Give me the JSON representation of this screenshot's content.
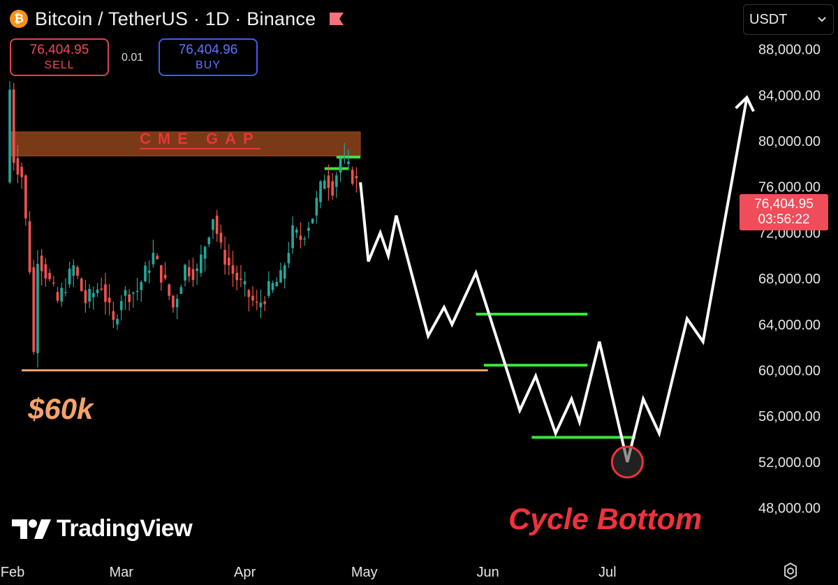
{
  "header": {
    "coin_icon": "bitcoin-icon",
    "title": "Bitcoin / TetherUS · 1D · Binance",
    "flag_icon": "flag-icon"
  },
  "trade": {
    "sell_price": "76,404.95",
    "sell_label": "SELL",
    "spread": "0.01",
    "buy_price": "76,404.96",
    "buy_label": "BUY"
  },
  "currency_select": {
    "value": "USDT"
  },
  "price_tag": {
    "price": "76,404.95",
    "countdown": "03:56:22"
  },
  "watermark": "TradingView",
  "colors": {
    "up": "#26a69a",
    "down": "#ef5350",
    "sell": "#f04a57",
    "buy": "#5b78ff",
    "gap": "#7a3a17",
    "support": "#f5a36a",
    "level": "#39e639",
    "projection": "#ffffff",
    "cycle": "#f0323b"
  },
  "chart_data": {
    "type": "line",
    "title": "Bitcoin / TetherUS · 1D · Binance",
    "y_axis": {
      "ticks": [
        "48,000.00",
        "52,000.00",
        "56,000.00",
        "60,000.00",
        "64,000.00",
        "68,000.00",
        "72,000.00",
        "76,000.00",
        "80,000.00",
        "84,000.00",
        "88,000.00"
      ],
      "tick_values": [
        48000,
        52000,
        56000,
        60000,
        64000,
        68000,
        72000,
        76000,
        80000,
        84000,
        88000
      ],
      "range": [
        44500,
        92000
      ]
    },
    "x_axis": {
      "ticks": [
        "Feb",
        "Mar",
        "Apr",
        "May",
        "Jun",
        "Jul"
      ],
      "tick_dates": [
        "2026-02-01",
        "2026-03-01",
        "2026-04-01",
        "2026-05-01",
        "2026-06-01",
        "2026-07-01"
      ],
      "range": [
        "2026-02-01",
        "2026-08-10"
      ]
    },
    "grid": false,
    "legend": "none",
    "price_history": [
      [
        "2026-02-01",
        84500
      ],
      [
        "2026-02-02",
        78500
      ],
      [
        "2026-02-04",
        77000
      ],
      [
        "2026-02-06",
        69000
      ],
      [
        "2026-02-07",
        61500
      ],
      [
        "2026-02-08",
        70000
      ],
      [
        "2026-02-10",
        68500
      ],
      [
        "2026-02-13",
        66000
      ],
      [
        "2026-02-17",
        69000
      ],
      [
        "2026-02-20",
        66000
      ],
      [
        "2026-02-24",
        67500
      ],
      [
        "2026-02-27",
        64000
      ],
      [
        "2026-03-01",
        66500
      ],
      [
        "2026-03-05",
        67000
      ],
      [
        "2026-03-09",
        70000
      ],
      [
        "2026-03-12",
        67500
      ],
      [
        "2026-03-14",
        65500
      ],
      [
        "2026-03-17",
        69000
      ],
      [
        "2026-03-20",
        68500
      ],
      [
        "2026-03-24",
        73500
      ],
      [
        "2026-03-26",
        70500
      ],
      [
        "2026-03-29",
        68500
      ],
      [
        "2026-04-01",
        67000
      ],
      [
        "2026-04-04",
        65500
      ],
      [
        "2026-04-07",
        67000
      ],
      [
        "2026-04-10",
        68000
      ],
      [
        "2026-04-13",
        72000
      ],
      [
        "2026-04-15",
        71500
      ],
      [
        "2026-04-18",
        73500
      ],
      [
        "2026-04-21",
        77000
      ],
      [
        "2026-04-23",
        76000
      ],
      [
        "2026-04-25",
        78500
      ],
      [
        "2026-04-27",
        77500
      ],
      [
        "2026-04-29",
        76400
      ]
    ],
    "projection": [
      [
        "2026-04-30",
        76400
      ],
      [
        "2026-05-02",
        69500
      ],
      [
        "2026-05-05",
        72000
      ],
      [
        "2026-05-07",
        70000
      ],
      [
        "2026-05-09",
        73500
      ],
      [
        "2026-05-17",
        63000
      ],
      [
        "2026-05-21",
        65500
      ],
      [
        "2026-05-23",
        64000
      ],
      [
        "2026-05-29",
        68500
      ],
      [
        "2026-06-09",
        56500
      ],
      [
        "2026-06-13",
        59500
      ],
      [
        "2026-06-18",
        54500
      ],
      [
        "2026-06-22",
        57500
      ],
      [
        "2026-06-24",
        55500
      ],
      [
        "2026-06-29",
        62500
      ],
      [
        "2026-07-06",
        52000
      ],
      [
        "2026-07-10",
        57500
      ],
      [
        "2026-07-14",
        54500
      ],
      [
        "2026-07-21",
        64500
      ],
      [
        "2026-07-25",
        62500
      ],
      [
        "2026-08-05",
        83800
      ]
    ],
    "levels": [
      {
        "y1": 78700,
        "y2": 80800,
        "x1": "2026-02-01",
        "x2": "2026-04-30",
        "kind": "cme-gap",
        "label": "CME GAP"
      },
      {
        "y": 60000,
        "x1": "2026-02-04",
        "x2": "2026-06-01",
        "kind": "support",
        "label": "$60k"
      },
      {
        "y": 64900,
        "x1": "2026-05-29",
        "x2": "2026-06-26",
        "kind": "green"
      },
      {
        "y": 60450,
        "x1": "2026-05-31",
        "x2": "2026-06-26",
        "kind": "green"
      },
      {
        "y": 54150,
        "x1": "2026-06-12",
        "x2": "2026-07-08",
        "kind": "green"
      },
      {
        "y": 77600,
        "x1": "2026-04-21",
        "x2": "2026-04-27",
        "kind": "green"
      },
      {
        "y": 78600,
        "x1": "2026-04-24",
        "x2": "2026-04-30",
        "kind": "green"
      }
    ],
    "annotations": [
      {
        "text": "CME GAP"
      },
      {
        "text": "$60k"
      },
      {
        "text": "Cycle Bottom",
        "at": [
          "2026-07-06",
          52000
        ]
      }
    ],
    "current_price": 76404.95
  }
}
